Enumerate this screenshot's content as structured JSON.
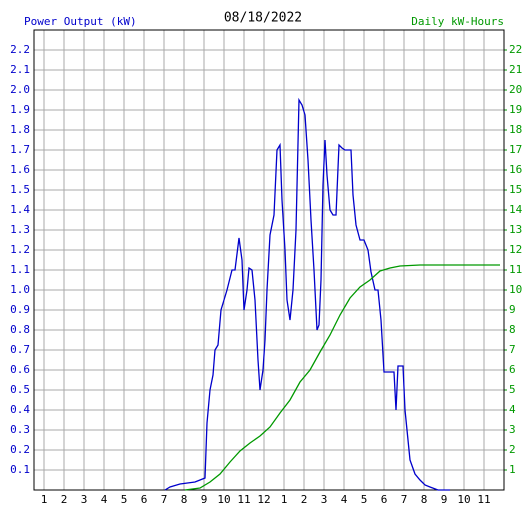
{
  "chart_data": {
    "type": "line",
    "title": "08/18/2022",
    "ylabel": "Power Output (kW)",
    "y2label": "Daily kW-Hours",
    "xlim": [
      0.5,
      24
    ],
    "xticks": [
      1,
      2,
      3,
      4,
      5,
      6,
      7,
      8,
      9,
      10,
      11,
      12,
      {
        "value": 13,
        "label": "1"
      },
      {
        "value": 14,
        "label": "2"
      },
      {
        "value": 15,
        "label": "3"
      },
      {
        "value": 16,
        "label": "4"
      },
      {
        "value": 17,
        "label": "5"
      },
      {
        "value": 18,
        "label": "6"
      },
      {
        "value": 19,
        "label": "7"
      },
      {
        "value": 20,
        "label": "8"
      },
      {
        "value": 21,
        "label": "9"
      },
      {
        "value": 22,
        "label": "10"
      },
      {
        "value": 23,
        "label": "11"
      }
    ],
    "ylim": [
      0,
      2.3
    ],
    "yticks": [
      0.1,
      0.2,
      0.3,
      0.4,
      0.5,
      0.6,
      0.7,
      0.8,
      0.9,
      {
        "value": 1,
        "label": "1.0"
      },
      1.1,
      1.2,
      1.3,
      1.4,
      1.5,
      1.6,
      1.7,
      1.8,
      1.9,
      {
        "value": 2,
        "label": "2.0"
      },
      2.1,
      2.2
    ],
    "y2lim": [
      0,
      23
    ],
    "y2ticks": [
      1,
      2,
      3,
      4,
      5,
      6,
      7,
      8,
      9,
      10,
      11,
      12,
      13,
      14,
      15,
      16,
      17,
      18,
      19,
      20,
      21,
      22
    ],
    "grid": true,
    "series": [
      {
        "color": "#0000cc",
        "axis": "y",
        "x": [
          7.05,
          7.3,
          7.8,
          8.55,
          9.05,
          9.15,
          9.3,
          9.45,
          9.55,
          9.7,
          9.85,
          10.0,
          10.15,
          10.4,
          10.55,
          10.75,
          10.9,
          11.0,
          11.15,
          11.25,
          11.4,
          11.55,
          11.7,
          11.8,
          11.95,
          12.05,
          12.15,
          12.3,
          12.5,
          12.65,
          12.8,
          12.9,
          13.05,
          13.15,
          13.3,
          13.45,
          13.6,
          13.75,
          13.9,
          14.05,
          14.2,
          14.35,
          14.5,
          14.65,
          14.75,
          14.85,
          14.95,
          15.05,
          15.15,
          15.3,
          15.45,
          15.6,
          15.75,
          15.9,
          16.05,
          16.2,
          16.35,
          16.45,
          16.6,
          16.8,
          17.0,
          17.2,
          17.35,
          17.55,
          17.7,
          17.85,
          18.0,
          18.3,
          18.5,
          18.6,
          18.7,
          18.95,
          19.05,
          19.15,
          19.3,
          19.55,
          19.8,
          20.05,
          20.3,
          20.7,
          21.3
        ],
        "values": [
          0,
          0.015,
          0.03,
          0.04,
          0.06,
          0.335,
          0.5,
          0.575,
          0.7,
          0.725,
          0.9,
          0.95,
          1.0,
          1.1,
          1.1,
          1.26,
          1.15,
          0.9,
          1.0,
          1.11,
          1.1,
          0.95,
          0.65,
          0.5,
          0.6,
          0.75,
          1.0,
          1.275,
          1.375,
          1.7,
          1.725,
          1.45,
          1.2,
          0.95,
          0.85,
          1.0,
          1.3,
          1.95,
          1.925,
          1.875,
          1.65,
          1.35,
          1.1,
          0.8,
          0.825,
          1.05,
          1.525,
          1.75,
          1.575,
          1.4,
          1.375,
          1.375,
          1.725,
          1.71,
          1.7,
          1.7,
          1.7,
          1.475,
          1.325,
          1.25,
          1.25,
          1.2,
          1.09,
          1.0,
          1.0,
          0.85,
          0.59,
          0.59,
          0.59,
          0.4,
          0.62,
          0.62,
          0.4,
          0.3,
          0.15,
          0.08,
          0.05,
          0.025,
          0.015,
          0,
          0
        ]
      },
      {
        "color": "#009900",
        "axis": "y2",
        "x": [
          8.05,
          8.8,
          9.3,
          9.8,
          10.3,
          10.8,
          11.3,
          11.8,
          12.3,
          12.8,
          13.3,
          13.8,
          14.3,
          14.8,
          15.3,
          15.8,
          16.3,
          16.8,
          17.3,
          17.8,
          18.3,
          18.8,
          19.8,
          23.8
        ],
        "values": [
          0,
          0.1,
          0.4,
          0.8,
          1.4,
          1.95,
          2.35,
          2.7,
          3.15,
          3.85,
          4.5,
          5.4,
          6.0,
          6.9,
          7.75,
          8.75,
          9.6,
          10.15,
          10.5,
          10.95,
          11.1,
          11.2,
          11.25,
          11.25
        ]
      }
    ]
  }
}
